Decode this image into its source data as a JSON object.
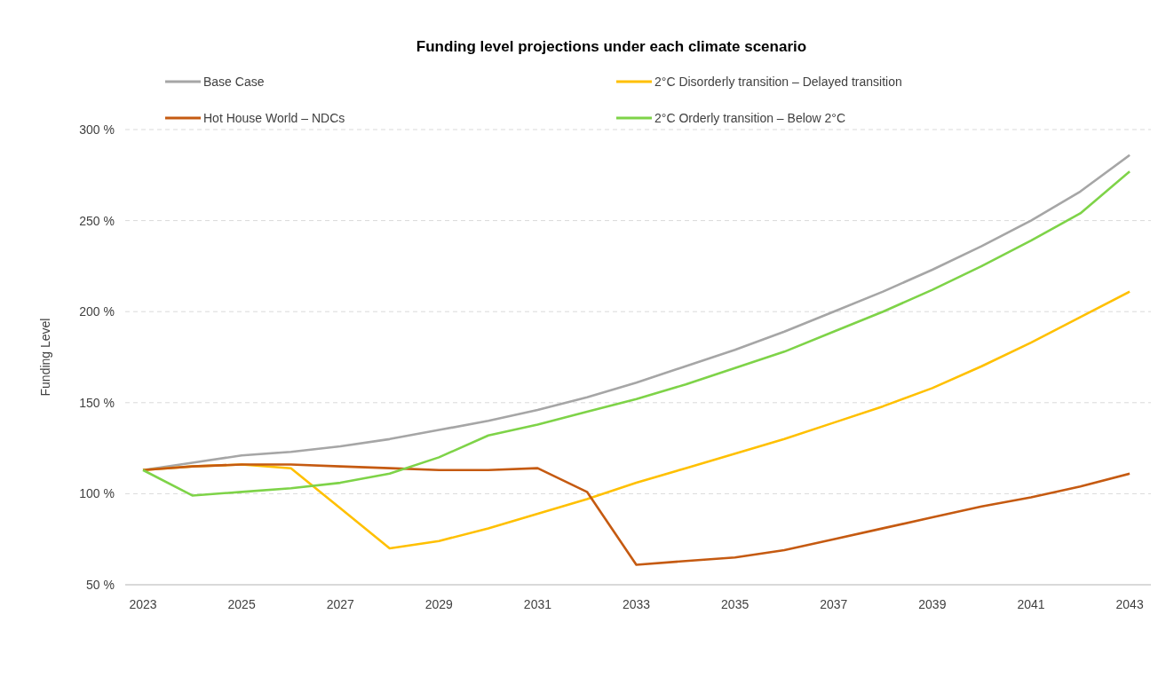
{
  "chart_data": {
    "type": "line",
    "title": "Funding level projections under each climate scenario",
    "ylabel": "Funding Level",
    "x": [
      2023,
      2024,
      2025,
      2026,
      2027,
      2028,
      2029,
      2030,
      2031,
      2032,
      2033,
      2034,
      2035,
      2036,
      2037,
      2038,
      2039,
      2040,
      2041,
      2042,
      2043
    ],
    "xlim": [
      2022.64,
      2043.43
    ],
    "xticks": [
      2023,
      2025,
      2027,
      2029,
      2031,
      2033,
      2035,
      2037,
      2039,
      2041,
      2043
    ],
    "ylim": [
      50,
      300
    ],
    "yticks": [
      {
        "value": 50,
        "label": "50 %"
      },
      {
        "value": 100,
        "label": "100 %"
      },
      {
        "value": 150,
        "label": "150 %"
      },
      {
        "value": 200,
        "label": "200 %"
      },
      {
        "value": 250,
        "label": "250 %"
      },
      {
        "value": 300,
        "label": "300 %"
      }
    ],
    "grid": "y",
    "legend": "top",
    "line_style": "solid",
    "series": [
      {
        "name": "Base Case",
        "color": "#a6a6a6",
        "values": [
          113,
          117,
          121,
          123,
          126,
          130,
          135,
          140,
          146,
          153,
          161,
          170,
          179,
          189,
          200,
          211,
          223,
          236,
          250,
          266,
          286
        ]
      },
      {
        "name": "2°C Disorderly transition – Delayed transition",
        "color": "#ffc000",
        "values": [
          113,
          115,
          116,
          114,
          92,
          70,
          74,
          81,
          89,
          97,
          106,
          114,
          122,
          130,
          139,
          148,
          158,
          170,
          183,
          197,
          211
        ]
      },
      {
        "name": "Hot House World – NDCs",
        "color": "#c55a11",
        "values": [
          113,
          115,
          116,
          116,
          115,
          114,
          113,
          113,
          114,
          101,
          61,
          63,
          65,
          69,
          75,
          81,
          87,
          93,
          98,
          104,
          111
        ]
      },
      {
        "name": "2°C Orderly transition – Below 2°C",
        "color": "#7ed348",
        "values": [
          113,
          99,
          101,
          103,
          106,
          111,
          120,
          132,
          138,
          145,
          152,
          160,
          169,
          178,
          189,
          200,
          212,
          225,
          239,
          254,
          277
        ]
      }
    ]
  }
}
